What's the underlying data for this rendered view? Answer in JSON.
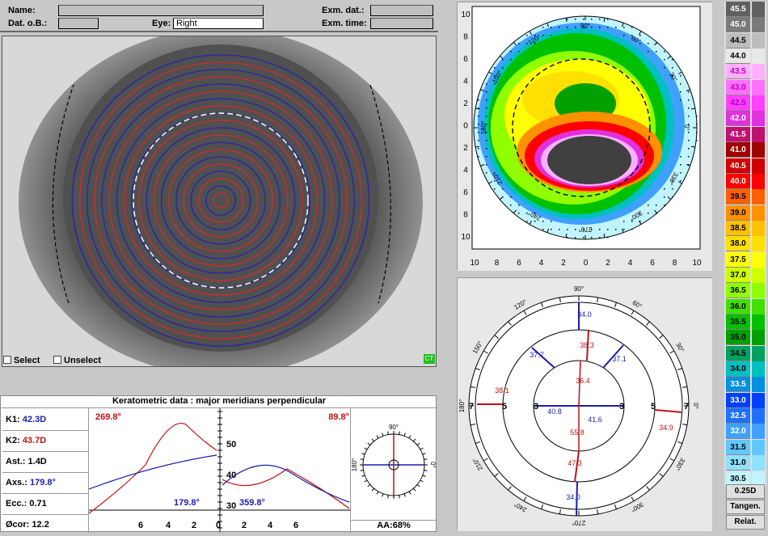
{
  "header": {
    "name_label": "Name:",
    "dob_label": "Dat. o.B.:",
    "eye_label": "Eye:",
    "eye_value": "Right",
    "exam_date_label": "Exm. dat.:",
    "exam_time_label": "Exm. time:"
  },
  "eye_image": {
    "select_label": "Select",
    "unselect_label": "Unselect",
    "badge": "CT"
  },
  "topo_map": {
    "angles": [
      "90°",
      "60°",
      "30°",
      "0°",
      "330°",
      "300°",
      "270°",
      "240°",
      "210°",
      "180°",
      "150°",
      "120°"
    ],
    "axis_ticks_y": [
      "10",
      "8",
      "6",
      "4",
      "2",
      "0",
      "2",
      "4",
      "6",
      "8",
      "10"
    ],
    "axis_ticks_x": [
      "10",
      "8",
      "6",
      "4",
      "2",
      "0",
      "2",
      "4",
      "6",
      "8",
      "10"
    ]
  },
  "meridian_map": {
    "angles": [
      "90°",
      "60°",
      "30°",
      "0°",
      "330°",
      "300°",
      "270°",
      "240°",
      "210°",
      "180°",
      "150°",
      "120°"
    ],
    "ring_labels_left": [
      "7",
      "5",
      "3"
    ],
    "ring_labels_right": [
      "3",
      "5",
      "7"
    ],
    "values_blue": [
      "34.0",
      "37.7",
      "37.1",
      "40.8",
      "41.6",
      "34.0"
    ],
    "values_red": [
      "38.3",
      "38.1",
      "36.4",
      "55.8",
      "47.3",
      "34.9"
    ]
  },
  "keratometric": {
    "title": "Keratometric data : major meridians perpendicular",
    "k1_label": "K1:",
    "k1_value": "42.3D",
    "k2_label": "K2:",
    "k2_value": "43.7D",
    "ast_label": "Ast.:",
    "ast_value": "1.4D",
    "axs_label": "Axs.:",
    "axs_value": "179.8°",
    "ecc_label": "Ecc.:",
    "ecc_value": "0.71",
    "cor_label": "Øcor:",
    "cor_value": "12.2",
    "graph_top_left": "269.8°",
    "graph_top_right": "89.8°",
    "graph_bottom_left": "179.8°",
    "graph_bottom_right": "359.8°",
    "graph_y_ticks": [
      "50",
      "40",
      "30"
    ],
    "graph_x_ticks": [
      "6",
      "4",
      "2",
      "0",
      "2",
      "4",
      "6"
    ],
    "mini_dial_angles": [
      "90°",
      "0°",
      "180°"
    ],
    "aa_text": "AA:68%"
  },
  "color_scale": {
    "levels": [
      {
        "label": "45.5",
        "color": "#606060",
        "text": "#fff"
      },
      {
        "label": "45.0",
        "color": "#7a7a7a",
        "text": "#fff"
      },
      {
        "label": "44.5",
        "color": "#bdbdbd",
        "text": "#000"
      },
      {
        "label": "44.0",
        "color": "#e8e8e8",
        "text": "#000"
      },
      {
        "label": "43.5",
        "color": "#ffb0ff",
        "text": "#c000c0"
      },
      {
        "label": "43.0",
        "color": "#ff70ff",
        "text": "#c000c0"
      },
      {
        "label": "42.5",
        "color": "#ff40ff",
        "text": "#b000b0"
      },
      {
        "label": "42.0",
        "color": "#e030e0",
        "text": "#fff"
      },
      {
        "label": "41.5",
        "color": "#c01070",
        "text": "#fff"
      },
      {
        "label": "41.0",
        "color": "#a00000",
        "text": "#fff"
      },
      {
        "label": "40.5",
        "color": "#d00000",
        "text": "#fff"
      },
      {
        "label": "40.0",
        "color": "#ff0000",
        "text": "#fff"
      },
      {
        "label": "39.5",
        "color": "#ff6000",
        "text": "#000"
      },
      {
        "label": "39.0",
        "color": "#ff9000",
        "text": "#000"
      },
      {
        "label": "38.5",
        "color": "#ffc000",
        "text": "#000"
      },
      {
        "label": "38.0",
        "color": "#ffe000",
        "text": "#000"
      },
      {
        "label": "37.5",
        "color": "#ffff00",
        "text": "#000"
      },
      {
        "label": "37.0",
        "color": "#d0ff00",
        "text": "#000"
      },
      {
        "label": "36.5",
        "color": "#90ff00",
        "text": "#000"
      },
      {
        "label": "36.0",
        "color": "#40e000",
        "text": "#000"
      },
      {
        "label": "35.5",
        "color": "#00c000",
        "text": "#000"
      },
      {
        "label": "35.0",
        "color": "#00a000",
        "text": "#000"
      },
      {
        "label": "34.5",
        "color": "#00a060",
        "text": "#000"
      },
      {
        "label": "34.0",
        "color": "#00c0c0",
        "text": "#000"
      },
      {
        "label": "33.5",
        "color": "#0090e0",
        "text": "#fff"
      },
      {
        "label": "33.0",
        "color": "#0040ff",
        "text": "#fff"
      },
      {
        "label": "32.5",
        "color": "#2070ff",
        "text": "#fff"
      },
      {
        "label": "32.0",
        "color": "#40a0ff",
        "text": "#fff"
      },
      {
        "label": "31.5",
        "color": "#60c8ff",
        "text": "#000"
      },
      {
        "label": "31.0",
        "color": "#90e0ff",
        "text": "#000"
      },
      {
        "label": "30.5",
        "color": "#c0f4ff",
        "text": "#000"
      }
    ],
    "step_label": "0.25D",
    "tangen_label": "Tangen.",
    "relat_label": "Relat."
  }
}
